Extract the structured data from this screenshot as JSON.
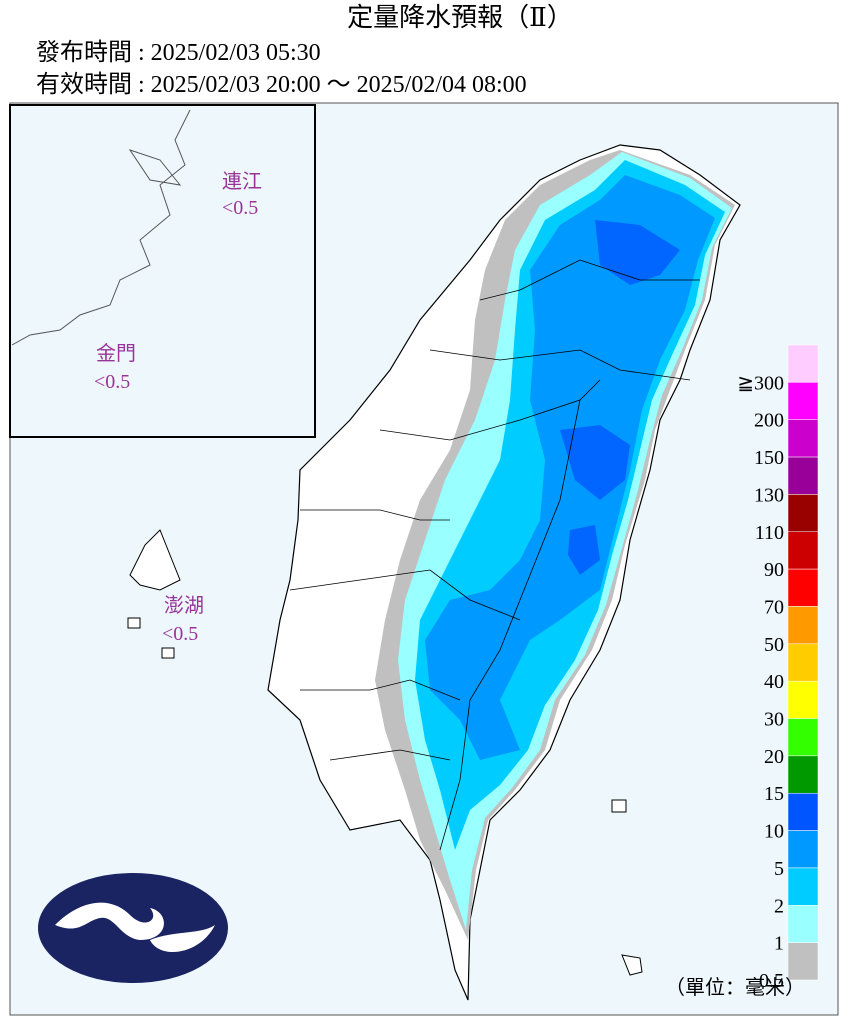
{
  "header": {
    "title": "定量降水預報（Ⅱ）",
    "issued": "發布時間 : 2025/02/03 05:30",
    "valid": "有效時間 : 2025/02/03 20:00 ～ 2025/02/04 08:00"
  },
  "regions": [
    {
      "name": "連江",
      "value": "<0.5"
    },
    {
      "name": "金門",
      "value": "<0.5"
    },
    {
      "name": "澎湖",
      "value": "<0.5"
    }
  ],
  "legend": {
    "items": [
      {
        "label": "≧300",
        "color": "#ffccff"
      },
      {
        "label": "200",
        "color": "#ff00ff"
      },
      {
        "label": "150",
        "color": "#cc00cc"
      },
      {
        "label": "130",
        "color": "#990099"
      },
      {
        "label": "110",
        "color": "#990000"
      },
      {
        "label": "90",
        "color": "#cc0000"
      },
      {
        "label": "70",
        "color": "#ff0000"
      },
      {
        "label": "50",
        "color": "#ff9900"
      },
      {
        "label": "40",
        "color": "#ffcc00"
      },
      {
        "label": "30",
        "color": "#ffff00"
      },
      {
        "label": "20",
        "color": "#33ff00"
      },
      {
        "label": "15",
        "color": "#009900"
      },
      {
        "label": "10",
        "color": "#0055ff"
      },
      {
        "label": "5",
        "color": "#0099ff"
      },
      {
        "label": "2",
        "color": "#00ccff"
      },
      {
        "label": "1",
        "color": "#99ffff"
      },
      {
        "label": "0.5",
        "color": "#c0c0c0"
      }
    ],
    "unit": "（單位：毫米）"
  }
}
